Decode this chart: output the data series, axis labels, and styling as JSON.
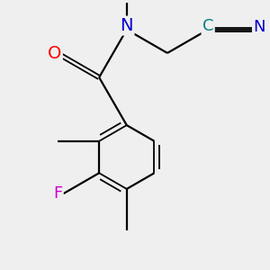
{
  "background_color": "#efefef",
  "atom_colors": {
    "O": "#ff0000",
    "N": "#0000cc",
    "F": "#cc00cc",
    "C_nitrile": "#008080",
    "default": "#000000"
  },
  "bond_color": "#000000",
  "bond_width": 1.6,
  "font_size": 13,
  "figsize": [
    3.0,
    3.0
  ],
  "dpi": 100
}
